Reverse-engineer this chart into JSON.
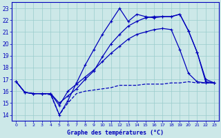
{
  "title": "Graphe des températures (°C)",
  "bg_color": "#cce8e8",
  "grid_color": "#99cccc",
  "line_color": "#0000bb",
  "xlim": [
    -0.5,
    23.5
  ],
  "ylim": [
    13.5,
    23.5
  ],
  "yticks": [
    14,
    15,
    16,
    17,
    18,
    19,
    20,
    21,
    22,
    23
  ],
  "xticks": [
    0,
    1,
    2,
    3,
    4,
    5,
    6,
    7,
    8,
    9,
    10,
    11,
    12,
    13,
    14,
    15,
    16,
    17,
    18,
    19,
    20,
    21,
    22,
    23
  ],
  "series_dew_x": [
    0,
    1,
    2,
    3,
    4,
    5,
    6,
    7,
    8,
    9,
    10,
    11,
    12,
    13,
    14,
    15,
    16,
    17,
    18,
    19,
    20,
    21,
    22,
    23
  ],
  "series_dew_y": [
    16.8,
    15.9,
    15.8,
    15.8,
    15.7,
    14.0,
    15.0,
    15.8,
    16.0,
    16.1,
    16.2,
    16.3,
    16.5,
    16.5,
    16.5,
    16.6,
    16.6,
    16.6,
    16.7,
    16.7,
    16.8,
    16.7,
    16.7,
    16.7
  ],
  "series_tmin_x": [
    0,
    1,
    2,
    3,
    4,
    5,
    6,
    7,
    8,
    9,
    10,
    11,
    12,
    13,
    14,
    15,
    16,
    17,
    18,
    19,
    20,
    21,
    22,
    23
  ],
  "series_tmin_y": [
    16.8,
    15.9,
    15.8,
    15.8,
    15.8,
    14.8,
    16.0,
    16.6,
    17.2,
    17.8,
    18.5,
    19.2,
    19.8,
    20.4,
    20.8,
    21.0,
    21.2,
    21.3,
    21.2,
    19.5,
    17.5,
    16.8,
    16.7,
    16.7
  ],
  "series_line3_x": [
    0,
    1,
    2,
    3,
    4,
    5,
    6,
    7,
    8,
    9,
    10,
    11,
    12,
    13,
    14,
    15,
    16,
    17,
    18,
    19,
    20,
    21,
    22,
    23
  ],
  "series_line3_y": [
    16.8,
    15.9,
    15.8,
    15.8,
    15.8,
    15.0,
    15.6,
    16.2,
    17.0,
    17.7,
    18.9,
    20.0,
    20.8,
    21.5,
    21.9,
    22.2,
    22.3,
    22.3,
    22.3,
    22.5,
    21.1,
    19.3,
    16.8,
    16.7
  ],
  "series_temp_x": [
    0,
    1,
    2,
    3,
    4,
    5,
    6,
    7,
    8,
    9,
    10,
    11,
    12,
    13,
    14,
    15,
    16,
    17,
    18,
    19,
    20,
    21,
    22,
    23
  ],
  "series_temp_y": [
    16.8,
    15.9,
    15.8,
    15.8,
    15.8,
    14.0,
    15.2,
    16.7,
    18.2,
    19.5,
    20.8,
    21.9,
    23.0,
    21.9,
    22.5,
    22.3,
    22.2,
    22.3,
    22.3,
    22.5,
    21.1,
    19.3,
    17.0,
    16.7
  ]
}
